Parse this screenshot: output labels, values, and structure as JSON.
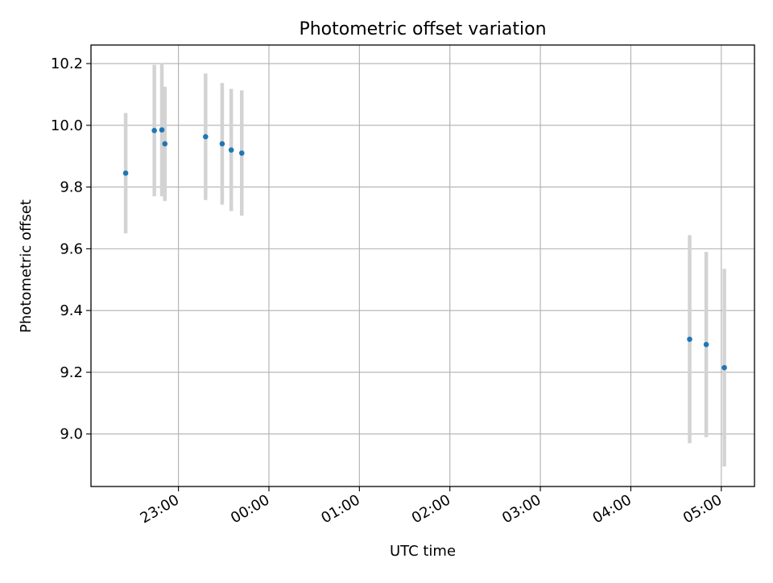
{
  "chart_data": {
    "type": "scatter",
    "title": "Photometric offset variation",
    "xlabel": "UTC time",
    "ylabel": "Photometric offset",
    "x_ticks": [
      "23:00",
      "00:00",
      "01:00",
      "02:00",
      "03:00",
      "04:00",
      "05:00"
    ],
    "y_ticks": [
      "9.0",
      "9.2",
      "9.4",
      "9.6",
      "9.8",
      "10.0",
      "10.2"
    ],
    "y_tick_values": [
      9.0,
      9.2,
      9.4,
      9.6,
      9.8,
      10.0,
      10.2
    ],
    "xlim": [
      "22:02",
      "05:22"
    ],
    "ylim": [
      8.83,
      10.26
    ],
    "grid": true,
    "marker_color": "#1f77b4",
    "errorbar_color": "#d3d3d3",
    "series": [
      {
        "points": [
          {
            "x": "22:25",
            "y": 9.845,
            "err": 0.195
          },
          {
            "x": "22:44",
            "y": 9.983,
            "err": 0.213
          },
          {
            "x": "22:49",
            "y": 9.985,
            "err": 0.215
          },
          {
            "x": "22:51",
            "y": 9.94,
            "err": 0.185
          },
          {
            "x": "23:18",
            "y": 9.963,
            "err": 0.205
          },
          {
            "x": "23:29",
            "y": 9.94,
            "err": 0.197
          },
          {
            "x": "23:35",
            "y": 9.92,
            "err": 0.198
          },
          {
            "x": "23:42",
            "y": 9.91,
            "err": 0.203
          },
          {
            "x": "04:39",
            "y": 9.307,
            "err": 0.337
          },
          {
            "x": "04:50",
            "y": 9.29,
            "err": 0.3
          },
          {
            "x": "05:02",
            "y": 9.215,
            "err": 0.32
          }
        ]
      }
    ]
  }
}
